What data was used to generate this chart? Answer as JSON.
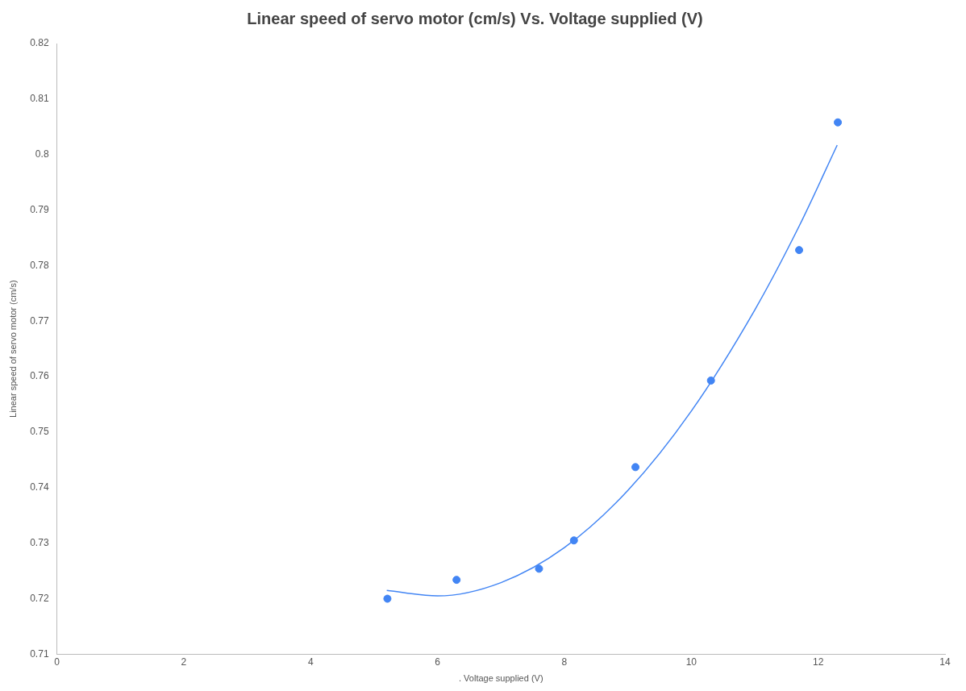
{
  "chart_data": {
    "type": "scatter",
    "title": "Linear speed of servo motor (cm/s) Vs. Voltage supplied (V)",
    "xlabel": ". Voltage supplied (V)",
    "ylabel": "Linear speed of servo motor (cm/s)",
    "xlim": [
      0,
      14
    ],
    "xticks": [
      0,
      2,
      4,
      6,
      8,
      10,
      12,
      14
    ],
    "ylim": [
      0.71,
      0.82
    ],
    "yticks": [
      0.71,
      0.72,
      0.73,
      0.74,
      0.75,
      0.76,
      0.77,
      0.78,
      0.79,
      0.8,
      0.81,
      0.82
    ],
    "grid": false,
    "legend": false,
    "marker": "circle",
    "series": [
      {
        "type": "scatter",
        "color": "#4285f4",
        "x": [
          5.21,
          6.3,
          7.6,
          8.15,
          9.12,
          10.31,
          11.7,
          12.31
        ],
        "values": [
          0.72,
          0.7234,
          0.7254,
          0.7305,
          0.7437,
          0.7593,
          0.7828,
          0.8058
        ]
      },
      {
        "type": "line",
        "color": "#4285f4",
        "marker": "none",
        "line_style": "solid",
        "x": [
          5.2,
          6.0,
          7.0,
          8.0,
          9.0,
          10.0,
          11.0,
          11.7,
          12.3
        ],
        "values": [
          0.7215,
          0.7205,
          0.7229,
          0.7292,
          0.7395,
          0.7538,
          0.772,
          0.7871,
          0.8017
        ]
      }
    ]
  }
}
